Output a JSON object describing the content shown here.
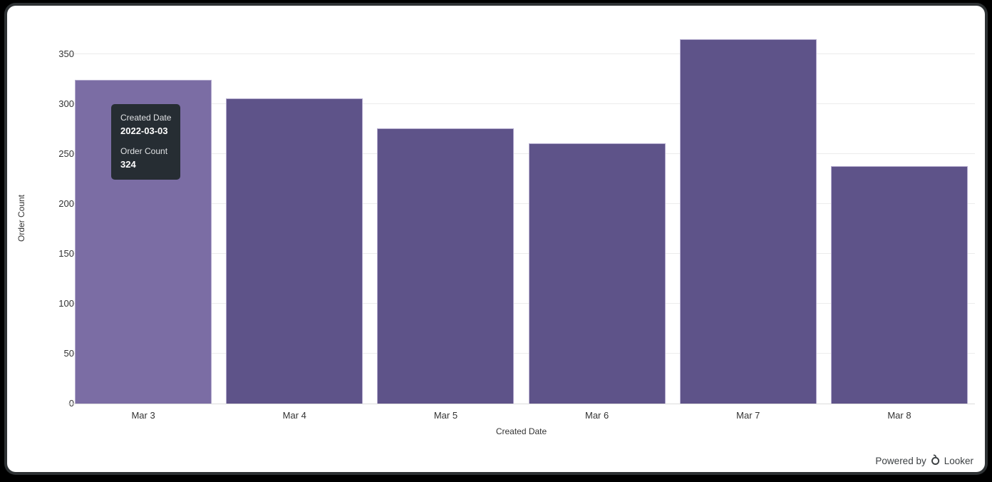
{
  "chart_data": {
    "type": "bar",
    "title": "",
    "categories": [
      "Mar 3",
      "Mar 4",
      "Mar 5",
      "Mar 6",
      "Mar 7",
      "Mar 8"
    ],
    "values": [
      324,
      306,
      276,
      261,
      365,
      238
    ],
    "xlabel": "Created Date",
    "ylabel": "Order Count",
    "yticks": [
      0,
      50,
      100,
      150,
      200,
      250,
      300,
      350
    ],
    "ylim": [
      0,
      371.4
    ],
    "grid": "horizontal",
    "legend": "none",
    "bar_color": "#5e5389",
    "bar_hover_color": "#7b6da4",
    "bar_border_color": "#b4abce",
    "hovered_index": 0
  },
  "tooltip": {
    "dimension_label": "Created Date",
    "dimension_value": "2022-03-03",
    "measure_label": "Order Count",
    "measure_value": "324",
    "bg_color": "#262d33"
  },
  "footer": {
    "powered_by_text": "Powered by",
    "brand_text": "Looker"
  },
  "colors": {
    "frame_bg": "#000000",
    "card_bg": "#ffffff",
    "gridline": "#ececec",
    "axis_line": "#dcdcdc",
    "tick_text": "#333333",
    "footer_text": "#3c4043"
  }
}
